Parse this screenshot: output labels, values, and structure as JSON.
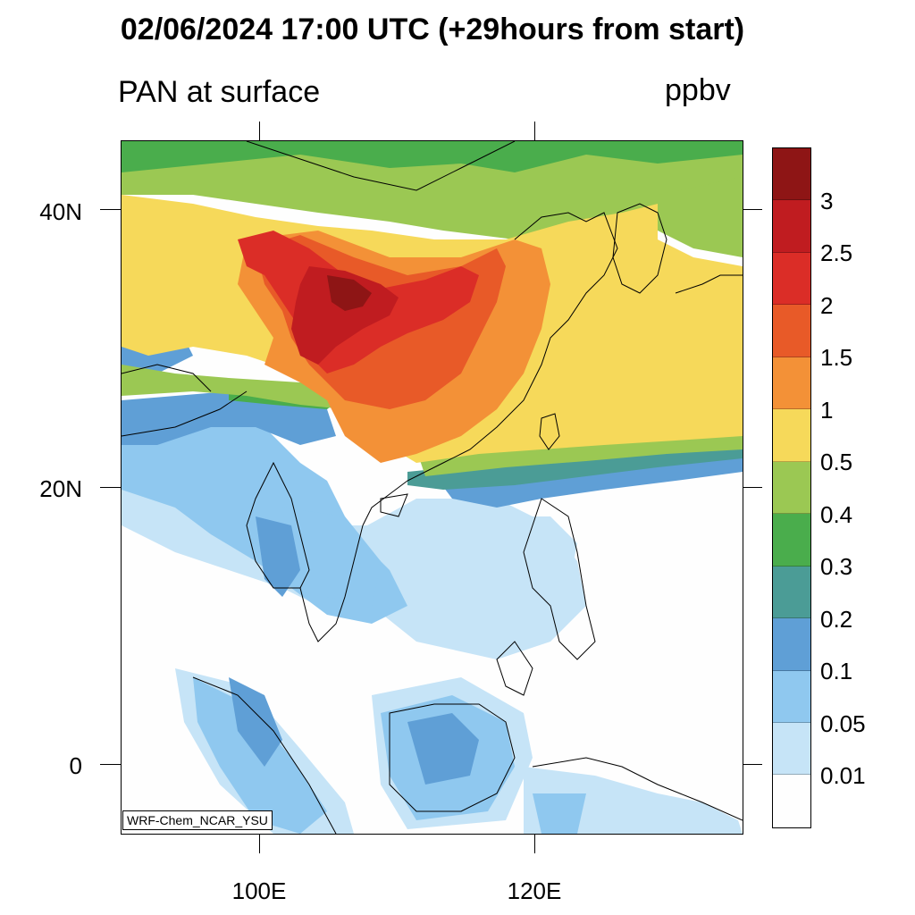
{
  "title": "02/06/2024 17:00 UTC (+29hours from start)",
  "subtitle": "PAN at surface",
  "units": "ppbv",
  "credit": "WRF-Chem_NCAR_YSU",
  "axes": {
    "y_labels": [
      "40N",
      "20N",
      "0"
    ],
    "x_labels": [
      "100E",
      "120E"
    ]
  },
  "colorbar": {
    "labels": [
      "3",
      "2.5",
      "2",
      "1.5",
      "1",
      "0.5",
      "0.4",
      "0.3",
      "0.2",
      "0.1",
      "0.05",
      "0.01"
    ],
    "colors": [
      "#8e1515",
      "#c01c20",
      "#db2d27",
      "#e85a28",
      "#f39137",
      "#f6d95a",
      "#9bc853",
      "#4aad4c",
      "#4b9c96",
      "#5f9fd6",
      "#8fc8ef",
      "#c6e4f7",
      "#fefefe"
    ]
  }
}
